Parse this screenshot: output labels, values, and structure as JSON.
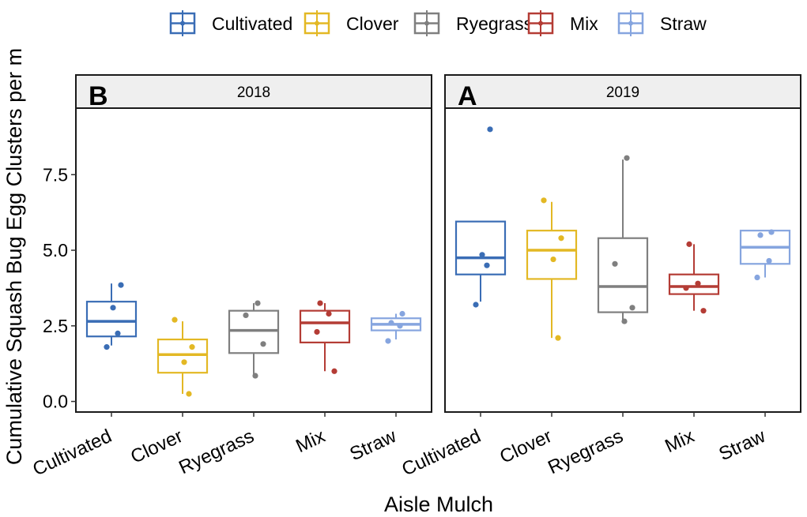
{
  "chart_data": {
    "type": "box",
    "ylabel": "Cumulative Squash Bug Egg Clusters per m",
    "xlabel": "Aisle Mulch",
    "ylim": [
      -0.35,
      9.7
    ],
    "yticks": [
      0.0,
      2.5,
      5.0,
      7.5
    ],
    "ytick_labels": [
      "0.0",
      "2.5",
      "5.0",
      "7.5"
    ],
    "legend": [
      {
        "name": "Cultivated",
        "color": "#3a6db5"
      },
      {
        "name": "Clover",
        "color": "#e3b824"
      },
      {
        "name": "Ryegrass",
        "color": "#7f7f7f"
      },
      {
        "name": "Mix",
        "color": "#b43c35"
      },
      {
        "name": "Straw",
        "color": "#86a5df"
      }
    ],
    "categories": [
      "Cultivated",
      "Clover",
      "Ryegrass",
      "Mix",
      "Straw"
    ],
    "panels": [
      {
        "year": "2018",
        "letter": "B",
        "boxes": [
          {
            "category": "Cultivated",
            "q1": 2.15,
            "median": 2.65,
            "q3": 3.3,
            "whisker_low": 1.85,
            "whisker_high": 3.9,
            "points": [
              1.8,
              2.25,
              3.1,
              3.85
            ]
          },
          {
            "category": "Clover",
            "q1": 0.95,
            "median": 1.55,
            "q3": 2.05,
            "whisker_low": 0.25,
            "whisker_high": 2.65,
            "points": [
              0.25,
              1.3,
              1.8,
              2.7
            ]
          },
          {
            "category": "Ryegrass",
            "q1": 1.6,
            "median": 2.35,
            "q3": 3.0,
            "whisker_low": 0.85,
            "whisker_high": 3.25,
            "points": [
              0.85,
              1.9,
              2.85,
              3.25
            ]
          },
          {
            "category": "Mix",
            "q1": 1.95,
            "median": 2.6,
            "q3": 3.0,
            "whisker_low": 1.0,
            "whisker_high": 3.25,
            "points": [
              1.0,
              2.3,
              2.9,
              3.25
            ]
          },
          {
            "category": "Straw",
            "q1": 2.35,
            "median": 2.55,
            "q3": 2.75,
            "whisker_low": 2.05,
            "whisker_high": 2.9,
            "points": [
              2.0,
              2.5,
              2.6,
              2.9
            ]
          }
        ]
      },
      {
        "year": "2019",
        "letter": "A",
        "boxes": [
          {
            "category": "Cultivated",
            "q1": 4.2,
            "median": 4.75,
            "q3": 5.95,
            "whisker_low": 3.3,
            "whisker_high": 5.95,
            "points": [
              3.2,
              4.5,
              4.85,
              9.0
            ]
          },
          {
            "category": "Clover",
            "q1": 4.05,
            "median": 5.0,
            "q3": 5.65,
            "whisker_low": 2.1,
            "whisker_high": 6.6,
            "points": [
              2.1,
              4.7,
              5.4,
              6.65
            ]
          },
          {
            "category": "Ryegrass",
            "q1": 2.95,
            "median": 3.8,
            "q3": 5.4,
            "whisker_low": 2.7,
            "whisker_high": 8.0,
            "points": [
              2.65,
              3.1,
              4.55,
              8.05
            ]
          },
          {
            "category": "Mix",
            "q1": 3.55,
            "median": 3.8,
            "q3": 4.2,
            "whisker_low": 3.0,
            "whisker_high": 5.2,
            "points": [
              3.0,
              3.75,
              3.9,
              5.2
            ]
          },
          {
            "category": "Straw",
            "q1": 4.55,
            "median": 5.1,
            "q3": 5.65,
            "whisker_low": 4.1,
            "whisker_high": 5.65,
            "points": [
              4.1,
              4.65,
              5.5,
              5.6
            ]
          }
        ]
      }
    ]
  }
}
